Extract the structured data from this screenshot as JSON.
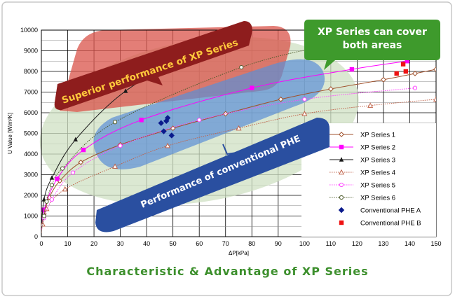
{
  "caption": "Characteristic & Advantage of XP Series",
  "chart_data": {
    "type": "line",
    "title": "",
    "xlabel": "ΔP[kPa]",
    "ylabel": "U Value [W/m²K]",
    "xlim": [
      0,
      150
    ],
    "ylim": [
      0,
      10000
    ],
    "xticks": [
      0,
      10,
      20,
      30,
      40,
      50,
      60,
      70,
      80,
      90,
      100,
      110,
      120,
      130,
      140,
      150
    ],
    "yticks": [
      0,
      1000,
      2000,
      3000,
      4000,
      5000,
      6000,
      7000,
      8000,
      9000,
      10000
    ],
    "grid": true,
    "legend_position": "bottom-right",
    "annotations": {
      "superior": "Superior performance of XP Series",
      "conventional": "Performance of conventional PHE",
      "cover": [
        "XP Series can cover",
        "both areas"
      ]
    },
    "colors": {
      "xp1": "#a0522d",
      "xp2": "#ff00ff",
      "xp3": "#1a1a1a",
      "xp4": "#c0634a",
      "xp5": "#ff44ff",
      "xp6": "#4d5a2a",
      "phe_a": "#0a1a8c",
      "phe_b": "#ee1111",
      "superior_band": "#d9534a",
      "conventional_band": "#5b8fd6",
      "halo": "#cfe0c3",
      "green_box": "#3e9a2c",
      "blue_box": "#2a4fa0",
      "red_box": "#8e1d1d"
    },
    "series": [
      {
        "name": "XP Series 1",
        "line": "solid",
        "marker": "diamond-open",
        "x": [
          0,
          1,
          3,
          7,
          15,
          30,
          50,
          70,
          91,
          110,
          130,
          142,
          150
        ],
        "y": [
          300,
          1100,
          1900,
          2700,
          3600,
          4450,
          5250,
          5950,
          6650,
          7150,
          7600,
          7900,
          8100
        ]
      },
      {
        "name": "XP Series 2",
        "line": "solid",
        "marker": "square",
        "x": [
          0,
          1,
          6,
          16,
          38,
          80,
          118,
          139
        ],
        "y": [
          350,
          1300,
          2800,
          4200,
          5650,
          7200,
          8100,
          8500
        ]
      },
      {
        "name": "XP Series 3",
        "line": "solid",
        "marker": "triangle",
        "x": [
          0,
          1,
          4,
          13,
          32,
          60,
          90
        ],
        "y": [
          400,
          1800,
          2850,
          4700,
          7050,
          9100,
          10600
        ]
      },
      {
        "name": "XP Series 4",
        "line": "dotted",
        "marker": "triangle-open",
        "x": [
          0,
          0.5,
          2,
          9,
          28,
          48,
          75,
          100,
          125,
          150
        ],
        "y": [
          200,
          600,
          1350,
          2300,
          3400,
          4400,
          5250,
          5950,
          6350,
          6650
        ]
      },
      {
        "name": "XP Series 5",
        "line": "dotted",
        "marker": "circle-open",
        "x": [
          0,
          1,
          4,
          12,
          30,
          60,
          100,
          142
        ],
        "y": [
          300,
          900,
          1800,
          3100,
          4400,
          5650,
          6650,
          7200
        ]
      },
      {
        "name": "XP Series 6",
        "line": "dotted",
        "marker": "circle-open",
        "x": [
          0,
          1,
          2,
          4,
          8,
          28,
          76,
          110
        ],
        "y": [
          300,
          1000,
          1700,
          2500,
          3300,
          5550,
          8200,
          9300
        ]
      },
      {
        "name": "Conventional PHE A",
        "line": "none",
        "marker": "diamond",
        "x": [
          45.5,
          46.5,
          47.5,
          48,
          49.5
        ],
        "y": [
          5500,
          5100,
          5600,
          5750,
          4900
        ]
      },
      {
        "name": "Conventional PHE B",
        "line": "none",
        "marker": "square",
        "x": [
          135,
          137.5,
          138.5
        ],
        "y": [
          7900,
          8350,
          8000
        ]
      }
    ]
  }
}
